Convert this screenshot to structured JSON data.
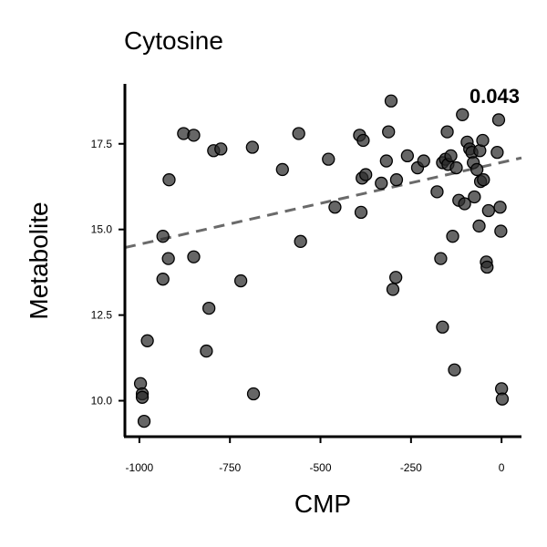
{
  "chart_data": {
    "type": "scatter",
    "title": "Cytosine",
    "xlabel": "CMP",
    "ylabel": "Metabolite",
    "annotation": "0.043",
    "xlim": [
      -1040,
      55
    ],
    "ylim": [
      8.95,
      19.25
    ],
    "xticks": [
      -1000,
      -750,
      -500,
      -250,
      0
    ],
    "xtick_labels": [
      "-1000",
      "-750",
      "-500",
      "-250",
      "0"
    ],
    "yticks": [
      10.0,
      12.5,
      15.0,
      17.5
    ],
    "ytick_labels": [
      "10.0",
      "12.5",
      "15.0",
      "17.5"
    ],
    "grid": false,
    "colors": {
      "point": "#2b2b2b",
      "trend": "#6a6a6a",
      "axis": "#000000"
    },
    "trend_line": {
      "x": [
        -1040,
        55
      ],
      "y": [
        14.47,
        17.09
      ]
    },
    "points": [
      {
        "x": -997,
        "y": 10.5
      },
      {
        "x": -992,
        "y": 10.2
      },
      {
        "x": -992,
        "y": 10.1
      },
      {
        "x": -987,
        "y": 9.4
      },
      {
        "x": -978,
        "y": 11.75
      },
      {
        "x": -935,
        "y": 14.8
      },
      {
        "x": -935,
        "y": 13.55
      },
      {
        "x": -920,
        "y": 14.15
      },
      {
        "x": -918,
        "y": 16.45
      },
      {
        "x": -878,
        "y": 17.8
      },
      {
        "x": -850,
        "y": 17.75
      },
      {
        "x": -850,
        "y": 14.2
      },
      {
        "x": -815,
        "y": 11.45
      },
      {
        "x": -808,
        "y": 12.7
      },
      {
        "x": -795,
        "y": 17.3
      },
      {
        "x": -775,
        "y": 17.35
      },
      {
        "x": -720,
        "y": 13.5
      },
      {
        "x": -688,
        "y": 17.4
      },
      {
        "x": -685,
        "y": 10.2
      },
      {
        "x": -605,
        "y": 16.75
      },
      {
        "x": -560,
        "y": 17.8
      },
      {
        "x": -555,
        "y": 14.65
      },
      {
        "x": -478,
        "y": 17.05
      },
      {
        "x": -460,
        "y": 15.65
      },
      {
        "x": -392,
        "y": 17.75
      },
      {
        "x": -388,
        "y": 15.5
      },
      {
        "x": -385,
        "y": 16.5
      },
      {
        "x": -382,
        "y": 17.6
      },
      {
        "x": -375,
        "y": 16.6
      },
      {
        "x": -332,
        "y": 16.35
      },
      {
        "x": -318,
        "y": 17.0
      },
      {
        "x": -312,
        "y": 17.85
      },
      {
        "x": -305,
        "y": 18.75
      },
      {
        "x": -300,
        "y": 13.25
      },
      {
        "x": -292,
        "y": 13.6
      },
      {
        "x": -290,
        "y": 16.45
      },
      {
        "x": -260,
        "y": 17.15
      },
      {
        "x": -232,
        "y": 16.8
      },
      {
        "x": -215,
        "y": 17.0
      },
      {
        "x": -178,
        "y": 16.1
      },
      {
        "x": -168,
        "y": 14.15
      },
      {
        "x": -163,
        "y": 12.15
      },
      {
        "x": -163,
        "y": 16.95
      },
      {
        "x": -155,
        "y": 17.05
      },
      {
        "x": -150,
        "y": 17.85
      },
      {
        "x": -148,
        "y": 16.9
      },
      {
        "x": -140,
        "y": 17.15
      },
      {
        "x": -135,
        "y": 14.8
      },
      {
        "x": -130,
        "y": 10.9
      },
      {
        "x": -125,
        "y": 16.8
      },
      {
        "x": -118,
        "y": 15.85
      },
      {
        "x": -108,
        "y": 18.35
      },
      {
        "x": -102,
        "y": 15.75
      },
      {
        "x": -95,
        "y": 17.55
      },
      {
        "x": -88,
        "y": 17.35
      },
      {
        "x": -82,
        "y": 17.25
      },
      {
        "x": -78,
        "y": 16.95
      },
      {
        "x": -75,
        "y": 15.95
      },
      {
        "x": -68,
        "y": 16.75
      },
      {
        "x": -62,
        "y": 15.1
      },
      {
        "x": -60,
        "y": 17.3
      },
      {
        "x": -58,
        "y": 16.4
      },
      {
        "x": -52,
        "y": 17.6
      },
      {
        "x": -50,
        "y": 16.45
      },
      {
        "x": -42,
        "y": 14.05
      },
      {
        "x": -40,
        "y": 13.9
      },
      {
        "x": -36,
        "y": 15.55
      },
      {
        "x": -12,
        "y": 17.25
      },
      {
        "x": -8,
        "y": 18.2
      },
      {
        "x": -4,
        "y": 15.65
      },
      {
        "x": -2,
        "y": 14.95
      },
      {
        "x": 0,
        "y": 10.35
      },
      {
        "x": 2,
        "y": 10.05
      }
    ]
  }
}
